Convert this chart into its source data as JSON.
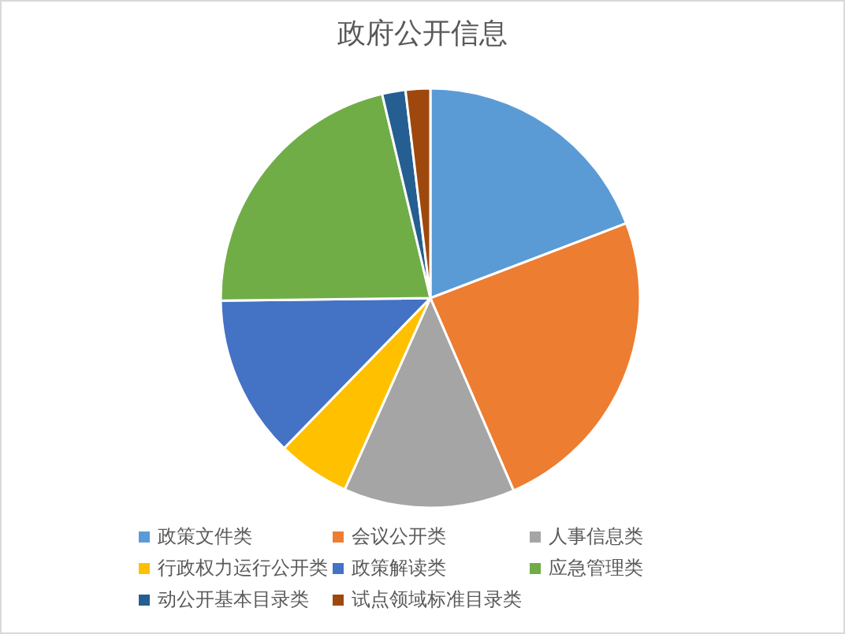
{
  "chart_data": {
    "type": "pie",
    "title": "政府公开信息",
    "categories": [
      "政策文件类",
      "会议公开类",
      "人事信息类",
      "行政权力运行公开类",
      "政策解读类",
      "应急管理类",
      "动公开基本目录类",
      "试点领域标准目录类"
    ],
    "values": [
      19.2,
      24.3,
      13.2,
      5.6,
      12.5,
      21.5,
      1.8,
      1.9
    ],
    "colors": [
      "#5b9bd5",
      "#ed7d31",
      "#a5a5a5",
      "#ffc000",
      "#4472c4",
      "#70ad47",
      "#255e91",
      "#9e480e"
    ],
    "legend": "bottom"
  }
}
